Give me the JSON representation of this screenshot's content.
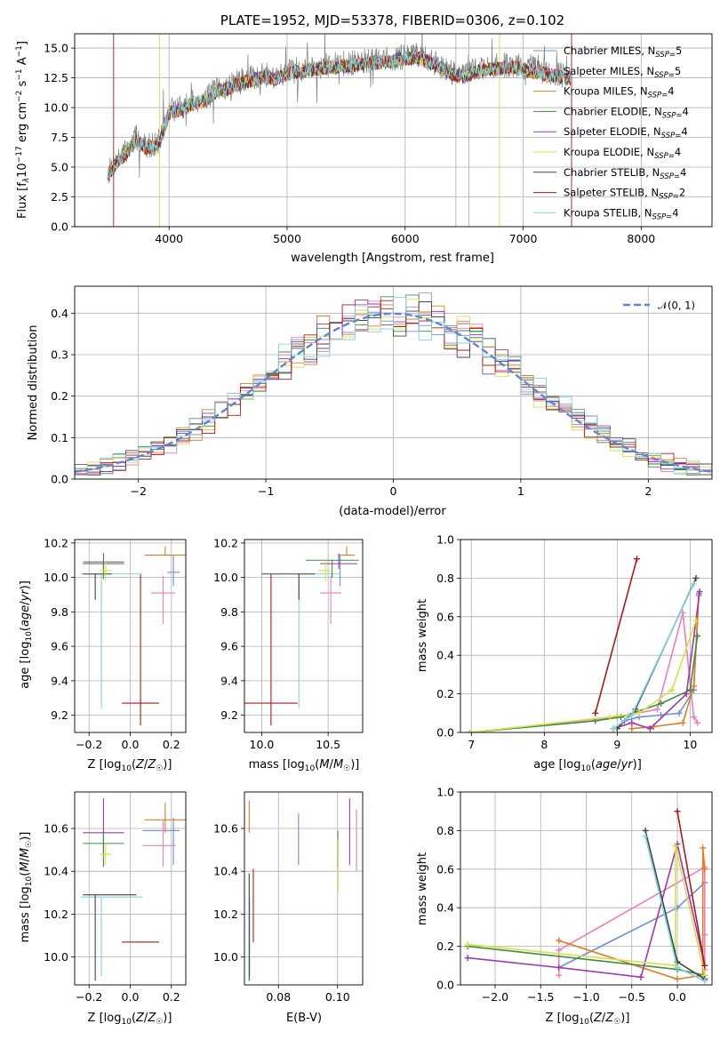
{
  "chart_data": [
    {
      "id": "spectrum",
      "type": "line",
      "title": "PLATE=1952, MJD=53378, FIBERID=0306, z=0.102",
      "xlabel": "wavelength [Angstrom, rest frame]",
      "ylabel_parts": [
        "Flux [f",
        "λ",
        "10",
        "−17",
        " erg cm",
        "−2",
        " s",
        "−1",
        " A",
        "−1",
        "]"
      ],
      "xlim": [
        3200,
        8600
      ],
      "ylim": [
        0,
        16.2
      ],
      "xticks": [
        4000,
        5000,
        6000,
        7000,
        8000
      ],
      "yticks": [
        0.0,
        2.5,
        5.0,
        7.5,
        10.0,
        12.5,
        15.0
      ],
      "ytick_labels": [
        "0.0",
        "2.5",
        "5.0",
        "7.5",
        "10.0",
        "12.5",
        "15.0"
      ],
      "legend_position": "top-right",
      "observed": {
        "x": [
          3480,
          3550,
          3650,
          3720,
          3800,
          3900,
          3950,
          4000,
          4100,
          4200,
          4300,
          4400,
          4500,
          4600,
          4700,
          4800,
          4900,
          5000,
          5100,
          5200,
          5300,
          5400,
          5500,
          5600,
          5700,
          5800,
          5900,
          6000,
          6100,
          6200,
          6300,
          6400,
          6500,
          6600,
          6700,
          6800,
          6900,
          7000,
          7100,
          7200,
          7300,
          7400
        ],
        "y": [
          4.5,
          5.5,
          6.5,
          7.5,
          6.8,
          7.0,
          8.0,
          9.8,
          10.0,
          10.5,
          10.8,
          11.5,
          11.8,
          12.2,
          12.5,
          12.8,
          12.6,
          13.0,
          13.2,
          13.4,
          13.5,
          13.6,
          13.7,
          13.8,
          13.9,
          14.0,
          14.1,
          14.3,
          14.4,
          14.0,
          13.5,
          13.0,
          12.8,
          13.2,
          13.4,
          13.5,
          13.6,
          13.4,
          13.2,
          13.0,
          12.8,
          12.5
        ]
      },
      "series": [
        {
          "name": "Chabrier MILES",
          "nssp": "5",
          "color": "#6f8fd8"
        },
        {
          "name": "Salpeter MILES",
          "nssp": "5",
          "color": "#e77fc0"
        },
        {
          "name": "Kroupa MILES",
          "nssp": "4",
          "color": "#e07c24"
        },
        {
          "name": "Chabrier ELODIE",
          "nssp": "4",
          "color": "#3f8f3f"
        },
        {
          "name": "Salpeter ELODIE",
          "nssp": "4",
          "color": "#9a39b0"
        },
        {
          "name": "Kroupa ELODIE",
          "nssp": "4",
          "color": "#d6e046"
        },
        {
          "name": "Chabrier STELIB",
          "nssp": "4",
          "color": "#444444"
        },
        {
          "name": "Salpeter STELIB",
          "nssp": "2",
          "color": "#b11818"
        },
        {
          "name": "Kroupa STELIB",
          "nssp": "4",
          "color": "#7fd6dd"
        }
      ]
    },
    {
      "id": "residuals",
      "type": "histogram",
      "xlabel": "(data-model)/error",
      "ylabel": "Normed distribution",
      "xlim": [
        -2.5,
        2.5
      ],
      "ylim": [
        0,
        0.465
      ],
      "xticks": [
        -2,
        -1,
        0,
        1,
        2
      ],
      "xtick_labels": [
        "−2",
        "−1",
        "0",
        "1",
        "2"
      ],
      "yticks": [
        0.0,
        0.1,
        0.2,
        0.3,
        0.4
      ],
      "ytick_labels": [
        "0.0",
        "0.1",
        "0.2",
        "0.3",
        "0.4"
      ],
      "bin_edges": [
        -2.5,
        2.5
      ],
      "bin_width": 0.1,
      "legend": "𝒩(0, 1)",
      "legend_color": "#5b86d6",
      "legend_position": "top-right"
    },
    {
      "id": "age-vs-Z",
      "type": "errorbar",
      "xlabel": "Z [log10(Z/Z☉)]",
      "ylabel": "age  [log10(age/yr)]",
      "xlim": [
        -0.27,
        0.27
      ],
      "ylim": [
        9.1,
        10.22
      ],
      "xticks": [
        -0.2,
        0.0,
        0.2
      ],
      "xtick_labels": [
        "−0.2",
        "0.0",
        "0.2"
      ],
      "yticks": [
        9.2,
        9.4,
        9.6,
        9.8,
        10.0,
        10.2
      ],
      "ytick_labels": [
        "9.2",
        "9.4",
        "9.6",
        "9.8",
        "10.0",
        "10.2"
      ],
      "points": [
        {
          "x": 0.05,
          "y": 9.27,
          "xerr": 0.09,
          "yerr": [
            0.13,
            0.75
          ],
          "color": "#b11818"
        },
        {
          "x": -0.14,
          "y": 10.02,
          "xerr": [
            0.1,
            0.2
          ],
          "yerr": [
            0.78,
            0.0
          ],
          "color": "#7fd6dd"
        },
        {
          "x": -0.17,
          "y": 10.02,
          "xerr": [
            0.06,
            0.08
          ],
          "yerr": [
            0.15,
            0.0
          ],
          "color": "#444444"
        },
        {
          "x": 0.21,
          "y": 10.03,
          "xerr": 0.03,
          "yerr": [
            0.08,
            0.1
          ],
          "color": "#6f8fd8"
        },
        {
          "x": 0.17,
          "y": 10.13,
          "xerr": 0.1,
          "yerr": [
            0.0,
            0.05
          ],
          "color": "#e07c24"
        },
        {
          "x": 0.16,
          "y": 9.91,
          "xerr": 0.06,
          "yerr": [
            0.18,
            0.1
          ],
          "color": "#e77fc0"
        },
        {
          "x": -0.13,
          "y": 10.08,
          "xerr": 0.1,
          "yerr": [
            0.03,
            0.06
          ],
          "color": "#9a39b0"
        },
        {
          "x": -0.13,
          "y": 10.09,
          "xerr": 0.1,
          "yerr": [
            0.1,
            0.0
          ],
          "color": "#3f8f3f"
        },
        {
          "x": -0.12,
          "y": 10.04,
          "xerr": 0.03,
          "yerr": [
            0.06,
            0.06
          ],
          "color": "#d6e046"
        }
      ]
    },
    {
      "id": "age-vs-mass",
      "type": "errorbar",
      "xlabel": "mass [log10(M/M☉)]",
      "xlim": [
        9.87,
        10.76
      ],
      "ylim": [
        9.1,
        10.22
      ],
      "xticks": [
        10.0,
        10.5
      ],
      "xtick_labels": [
        "10.0",
        "10.5"
      ],
      "yticks": [
        9.2,
        9.4,
        9.6,
        9.8,
        10.0,
        10.2
      ],
      "ytick_labels": [
        "9.2",
        "9.4",
        "9.6",
        "9.8",
        "10.0",
        "10.2"
      ],
      "points": [
        {
          "x": 10.07,
          "y": 9.27,
          "xerr": 0.2,
          "yerr": [
            0.13,
            0.75
          ],
          "color": "#b11818"
        },
        {
          "x": 10.28,
          "y": 10.02,
          "xerr": [
            0.0,
            0.31
          ],
          "yerr": [
            0.78,
            0.0
          ],
          "color": "#7fd6dd"
        },
        {
          "x": 10.28,
          "y": 10.02,
          "xerr": [
            0.28,
            0.12
          ],
          "yerr": [
            0.15,
            0.0
          ],
          "color": "#444444"
        },
        {
          "x": 10.59,
          "y": 10.03,
          "xerr": 0.0,
          "yerr": [
            0.08,
            0.1
          ],
          "color": "#6f8fd8"
        },
        {
          "x": 10.64,
          "y": 10.13,
          "xerr": 0.06,
          "yerr": [
            0.0,
            0.05
          ],
          "color": "#e07c24"
        },
        {
          "x": 10.52,
          "y": 9.91,
          "xerr": 0.08,
          "yerr": [
            0.18,
            0.1
          ],
          "color": "#e77fc0"
        },
        {
          "x": 10.58,
          "y": 10.08,
          "xerr": 0.14,
          "yerr": [
            0.03,
            0.06
          ],
          "color": "#9a39b0"
        },
        {
          "x": 10.53,
          "y": 10.1,
          "xerr": 0.2,
          "yerr": [
            0.1,
            0.0
          ],
          "color": "#3f8f3f"
        },
        {
          "x": 10.48,
          "y": 10.04,
          "xerr": 0.05,
          "yerr": [
            0.06,
            0.06
          ],
          "color": "#d6e046"
        }
      ]
    },
    {
      "id": "weight-vs-age",
      "type": "line",
      "xlabel": "age  [log10(age/yr)]",
      "ylabel": "mass weight",
      "xlim": [
        6.85,
        10.3
      ],
      "ylim": [
        0,
        1.0
      ],
      "xticks": [
        7,
        8,
        9,
        10
      ],
      "xtick_labels": [
        "7",
        "8",
        "9",
        "10"
      ],
      "yticks": [
        0.0,
        0.2,
        0.4,
        0.6,
        0.8,
        1.0
      ],
      "ytick_labels": [
        "0.0",
        "0.2",
        "0.4",
        "0.6",
        "0.8",
        "1.0"
      ],
      "series": [
        {
          "color": "#6f8fd8",
          "x": [
            8.95,
            9.1,
            9.3,
            9.6,
            9.85,
            10.05,
            10.12
          ],
          "y": [
            0.02,
            0.06,
            0.08,
            0.09,
            0.1,
            0.22,
            0.72
          ]
        },
        {
          "color": "#e77fc0",
          "x": [
            6.98,
            9.0,
            9.55,
            9.9,
            10.05,
            10.1
          ],
          "y": [
            0.0,
            0.08,
            0.12,
            0.62,
            0.08,
            0.05
          ]
        },
        {
          "color": "#e07c24",
          "x": [
            9.2,
            9.5,
            9.9,
            10.05,
            10.12
          ],
          "y": [
            0.02,
            0.03,
            0.05,
            0.24,
            0.71
          ]
        },
        {
          "color": "#3f8f3f",
          "x": [
            6.98,
            8.7,
            9.05,
            9.6,
            10.0,
            10.1
          ],
          "y": [
            0.0,
            0.06,
            0.08,
            0.15,
            0.22,
            0.5
          ]
        },
        {
          "color": "#9a39b0",
          "x": [
            8.95,
            9.2,
            9.45,
            9.95,
            10.13
          ],
          "y": [
            0.02,
            0.05,
            0.02,
            0.2,
            0.73
          ]
        },
        {
          "color": "#d6e046",
          "x": [
            6.98,
            8.9,
            9.3,
            9.75,
            10.08
          ],
          "y": [
            0.0,
            0.08,
            0.1,
            0.22,
            0.58
          ]
        },
        {
          "color": "#444444",
          "x": [
            9.0,
            9.25,
            10.08
          ],
          "y": [
            0.02,
            0.12,
            0.8
          ]
        },
        {
          "color": "#b11818",
          "x": [
            8.7,
            9.27
          ],
          "y": [
            0.1,
            0.9
          ]
        },
        {
          "color": "#7fd6dd",
          "x": [
            8.95,
            9.2,
            10.05
          ],
          "y": [
            0.02,
            0.09,
            0.77
          ]
        }
      ]
    },
    {
      "id": "mass-vs-Z",
      "type": "errorbar",
      "xlabel": "Z [log10(Z/Z☉)]",
      "ylabel": "mass [log10(M/M☉)]",
      "xlim": [
        -0.27,
        0.27
      ],
      "ylim": [
        9.87,
        10.77
      ],
      "xticks": [
        -0.2,
        0.0,
        0.2
      ],
      "xtick_labels": [
        "−0.2",
        "0.0",
        "0.2"
      ],
      "yticks": [
        10.0,
        10.2,
        10.4,
        10.6
      ],
      "ytick_labels": [
        "10.0",
        "10.2",
        "10.4",
        "10.6"
      ],
      "points": [
        {
          "x": 0.05,
          "y": 10.07,
          "xerr": 0.09,
          "yerr": 0.0,
          "color": "#b11818"
        },
        {
          "x": -0.14,
          "y": 10.28,
          "xerr": [
            0.1,
            0.2
          ],
          "yerr": [
            0.37,
            0.0
          ],
          "color": "#7fd6dd"
        },
        {
          "x": -0.17,
          "y": 10.29,
          "xerr": [
            0.06,
            0.2
          ],
          "yerr": [
            0.4,
            0.0
          ],
          "color": "#444444"
        },
        {
          "x": 0.21,
          "y": 10.59,
          "xerr": [
            0.15,
            0.03
          ],
          "yerr": [
            0.16,
            0.06
          ],
          "color": "#6f8fd8"
        },
        {
          "x": 0.17,
          "y": 10.64,
          "xerr": [
            0.1,
            0.1
          ],
          "yerr": [
            0.06,
            0.08
          ],
          "color": "#e07c24"
        },
        {
          "x": 0.16,
          "y": 10.52,
          "xerr": [
            0.1,
            0.06
          ],
          "yerr": [
            0.1,
            0.12
          ],
          "color": "#e77fc0"
        },
        {
          "x": -0.13,
          "y": 10.58,
          "xerr": 0.1,
          "yerr": [
            0.1,
            0.16
          ],
          "color": "#9a39b0"
        },
        {
          "x": -0.13,
          "y": 10.53,
          "xerr": 0.1,
          "yerr": [
            0.11,
            0.05
          ],
          "color": "#3f8f3f"
        },
        {
          "x": -0.12,
          "y": 10.48,
          "xerr": 0.03,
          "yerr": [
            0.05,
            0.05
          ],
          "color": "#d6e046"
        }
      ]
    },
    {
      "id": "mass-vs-ebv",
      "type": "errorbar",
      "xlabel": "E(B-V)",
      "xlim": [
        0.0685,
        0.1085
      ],
      "ylim": [
        9.87,
        10.77
      ],
      "xticks": [
        0.08,
        0.1
      ],
      "xtick_labels": [
        "0.08",
        "0.10"
      ],
      "yticks": [
        10.0,
        10.2,
        10.4,
        10.6
      ],
      "ytick_labels": [
        "10.0",
        "10.2",
        "10.4",
        "10.6"
      ],
      "points": [
        {
          "x": 0.0715,
          "y": 10.07,
          "xerr": 0.0,
          "yerr": [
            0.0,
            0.34
          ],
          "color": "#b11818"
        },
        {
          "x": 0.0703,
          "y": 10.28,
          "xerr": 0.0,
          "yerr": [
            0.37,
            0.0
          ],
          "color": "#7fd6dd"
        },
        {
          "x": 0.0701,
          "y": 10.29,
          "xerr": 0.0,
          "yerr": [
            0.4,
            0.1
          ],
          "color": "#444444"
        },
        {
          "x": 0.0868,
          "y": 10.59,
          "xerr": 0.0,
          "yerr": [
            0.16,
            0.08
          ],
          "color": "#6f8fd8"
        },
        {
          "x": 0.0701,
          "y": 10.64,
          "xerr": 0.0,
          "yerr": [
            0.06,
            0.09
          ],
          "color": "#e07c24"
        },
        {
          "x": 0.1064,
          "y": 10.52,
          "xerr": 0.0,
          "yerr": [
            0.12,
            0.17
          ],
          "color": "#e77fc0"
        },
        {
          "x": 0.1041,
          "y": 10.58,
          "xerr": 0.0,
          "yerr": [
            0.15,
            0.16
          ],
          "color": "#9a39b0"
        },
        {
          "x": 0.1001,
          "y": 10.53,
          "xerr": 0.0,
          "yerr": [
            0.11,
            0.06
          ],
          "color": "#3f8f3f"
        },
        {
          "x": 0.1002,
          "y": 10.45,
          "xerr": 0.0,
          "yerr": [
            0.15,
            0.1
          ],
          "color": "#d6e046"
        }
      ]
    },
    {
      "id": "weight-vs-Z",
      "type": "line",
      "xlabel": "Z [log10(Z/Z☉)]",
      "ylabel": "mass weight",
      "xlim": [
        -2.38,
        0.38
      ],
      "ylim": [
        0,
        1.0
      ],
      "xticks": [
        -2.0,
        -1.5,
        -1.0,
        -0.5,
        0.0
      ],
      "xtick_labels": [
        "−2.0",
        "−1.5",
        "−1.0",
        "−0.5",
        "0.0"
      ],
      "yticks": [
        0.0,
        0.2,
        0.4,
        0.6,
        0.8,
        1.0
      ],
      "ytick_labels": [
        "0.0",
        "0.2",
        "0.4",
        "0.6",
        "0.8",
        "1.0"
      ],
      "series": [
        {
          "color": "#6f8fd8",
          "x": [
            -1.3,
            0.0,
            0.3
          ],
          "y": [
            0.09,
            0.4,
            0.53
          ]
        },
        {
          "color": "#e77fc0",
          "x": [
            -1.3,
            -1.3,
            0.3,
            0.3,
            0.3
          ],
          "y": [
            0.05,
            0.18,
            0.61,
            0.26,
            0.08
          ]
        },
        {
          "color": "#e07c24",
          "x": [
            -1.3,
            0.0,
            0.28,
            0.28,
            0.3
          ],
          "y": [
            0.23,
            0.03,
            0.05,
            0.71,
            0.6
          ]
        },
        {
          "color": "#3f8f3f",
          "x": [
            -2.3,
            0.0,
            0.3
          ],
          "y": [
            0.2,
            0.08,
            0.05
          ]
        },
        {
          "color": "#9a39b0",
          "x": [
            -2.3,
            -1.3,
            -0.4,
            0.0,
            0.3
          ],
          "y": [
            0.14,
            0.09,
            0.04,
            0.73,
            0.1
          ]
        },
        {
          "color": "#d6e046",
          "x": [
            -2.3,
            -0.02,
            -0.02,
            0.3
          ],
          "y": [
            0.21,
            0.1,
            0.72,
            0.05
          ]
        },
        {
          "color": "#444444",
          "x": [
            -0.35,
            0.0,
            0.3
          ],
          "y": [
            0.8,
            0.12,
            0.03
          ]
        },
        {
          "color": "#b11818",
          "x": [
            0.0,
            0.3
          ],
          "y": [
            0.9,
            0.1
          ]
        },
        {
          "color": "#7fd6dd",
          "x": [
            -0.35,
            0.0,
            0.3
          ],
          "y": [
            0.77,
            0.09,
            0.02
          ]
        }
      ]
    }
  ]
}
